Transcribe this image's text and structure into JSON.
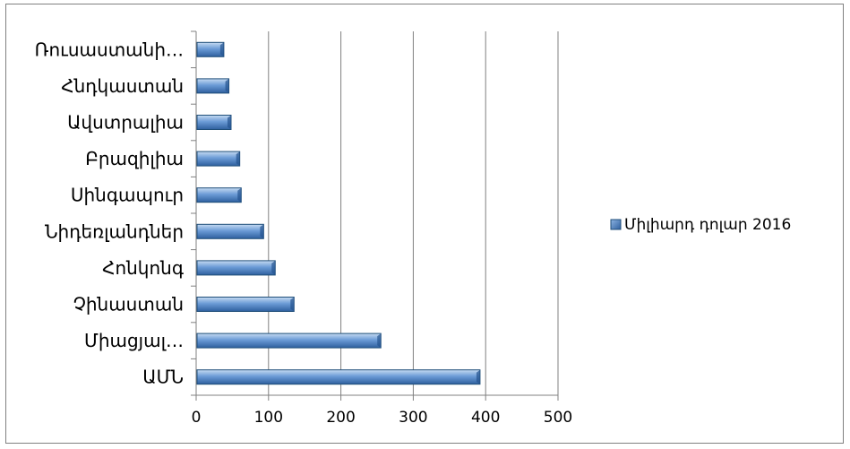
{
  "chart_data": {
    "type": "bar",
    "orientation": "horizontal",
    "categories": [
      "ԱՄՆ",
      "Միացյալ…",
      "Չինաստան",
      "Հոնկոնգ",
      "Նիդեռլանդներ",
      "Սինգապուր",
      "Բրազիլիա",
      "Ավստրալիա",
      "Հնդկաստան",
      "Ռուսաստանի…"
    ],
    "series": [
      {
        "name": "Միլիարդ դոլար 2016",
        "values": [
          391,
          254,
          134,
          108,
          92,
          61,
          59,
          47,
          44,
          37
        ]
      }
    ],
    "xlim": [
      0,
      500
    ],
    "xticks": [
      0,
      100,
      200,
      300,
      400,
      500
    ],
    "tick_labels": [
      "0",
      "100",
      "200",
      "300",
      "400",
      "500"
    ],
    "grid": true,
    "legend": "right",
    "colors": {
      "bar_fill_light": "#8db4e2",
      "bar_fill_dark": "#2e5f9e",
      "bar_stroke": "#1f4e79",
      "grid": "#808080",
      "frame": "#808080"
    }
  }
}
